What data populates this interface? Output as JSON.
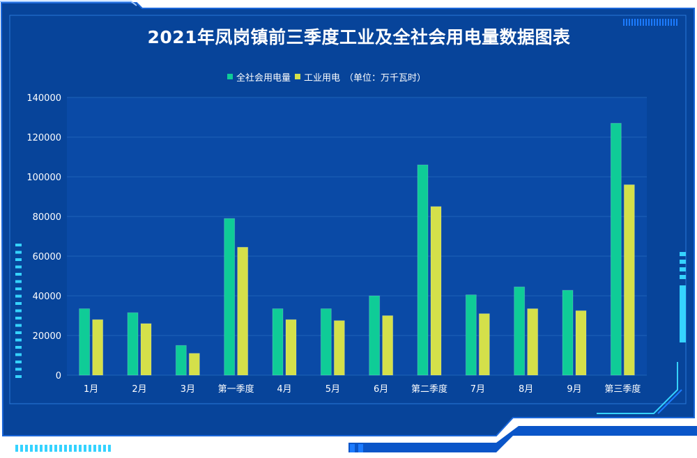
{
  "title": "2021年凤岗镇前三季度工业及全社会用电量数据图表",
  "legend": {
    "items": [
      {
        "label": "全社会用电量",
        "color": "#0fcc97"
      },
      {
        "label": "工业用电",
        "color": "#d4e04a"
      }
    ],
    "unit_note": "（单位：万千瓦时）"
  },
  "colors": {
    "background": "#07449a",
    "frame_accent": "#35d3ff",
    "gridline": "#1e63b8"
  },
  "chart_data": {
    "type": "bar",
    "categories": [
      "1月",
      "2月",
      "3月",
      "第一季度",
      "4月",
      "5月",
      "6月",
      "第二季度",
      "7月",
      "8月",
      "9月",
      "第三季度"
    ],
    "series": [
      {
        "name": "全社会用电量",
        "values": [
          33500,
          31500,
          15000,
          79000,
          33500,
          33500,
          40000,
          106000,
          40500,
          44500,
          42800,
          127000
        ]
      },
      {
        "name": "工业用电",
        "values": [
          28000,
          26000,
          11000,
          64500,
          28000,
          27500,
          30000,
          85000,
          31000,
          33500,
          32500,
          96000
        ]
      }
    ],
    "ylim": [
      0,
      140000
    ],
    "yticks": [
      "0",
      "20000",
      "40000",
      "60000",
      "80000",
      "100000",
      "120000",
      "140000"
    ],
    "grid": true,
    "legend_position": "top"
  }
}
